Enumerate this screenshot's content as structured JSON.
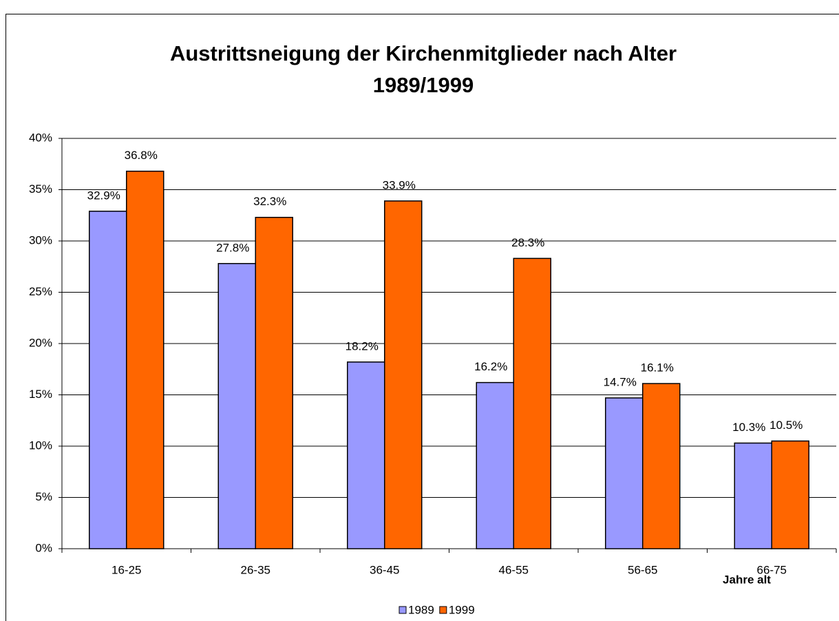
{
  "chart_data": {
    "type": "bar",
    "title": [
      "Austrittsneigung der Kirchenmitglieder nach Alter",
      "1989/1999"
    ],
    "x_label": "Jahre alt",
    "categories": [
      "16-25",
      "26-35",
      "36-45",
      "46-55",
      "56-65",
      "66-75"
    ],
    "series": [
      {
        "name": "1989",
        "color": "#9999ff",
        "values": [
          32.9,
          27.8,
          18.2,
          16.2,
          14.7,
          10.3
        ],
        "value_labels": [
          "32.9%",
          "27.8%",
          "18.2%",
          "16.2%",
          "14.7%",
          "10.3%"
        ]
      },
      {
        "name": "1999",
        "color": "#ff6600",
        "values": [
          36.8,
          32.3,
          33.9,
          28.3,
          16.1,
          10.5
        ],
        "value_labels": [
          "36.8%",
          "32.3%",
          "33.9%",
          "28.3%",
          "16.1%",
          "10.5%"
        ]
      }
    ],
    "ylim": [
      0,
      40
    ],
    "yticks": [
      {
        "value": 0,
        "label": "0%"
      },
      {
        "value": 5,
        "label": "5%"
      },
      {
        "value": 10,
        "label": "10%"
      },
      {
        "value": 15,
        "label": "15%"
      },
      {
        "value": 20,
        "label": "20%"
      },
      {
        "value": 25,
        "label": "25%"
      },
      {
        "value": 30,
        "label": "30%"
      },
      {
        "value": 35,
        "label": "35%"
      },
      {
        "value": 40,
        "label": "40%"
      }
    ],
    "grid": true,
    "legend": "bottom"
  }
}
